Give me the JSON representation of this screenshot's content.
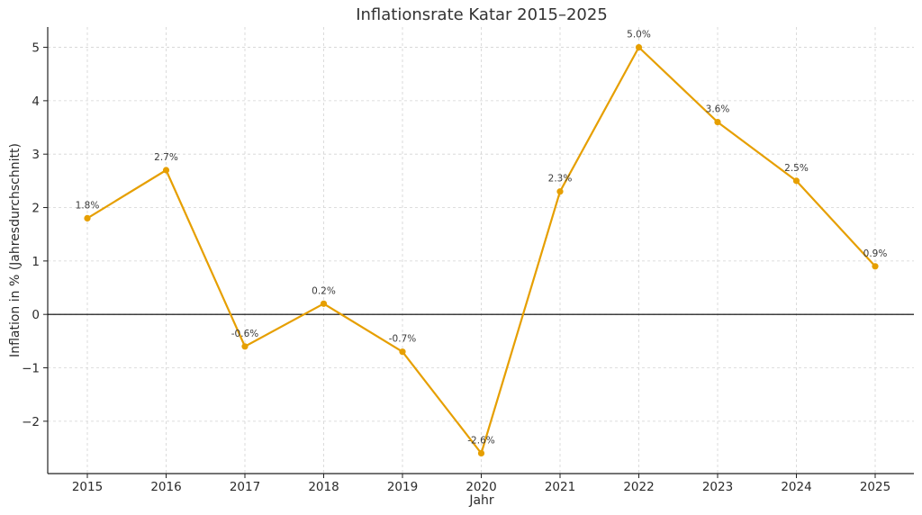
{
  "chart_data": {
    "type": "line",
    "title": "Inflationsrate Katar 2015–2025",
    "xlabel": "Jahr",
    "ylabel": "Inflation in % (Jahresdurchschnitt)",
    "x": [
      "2015",
      "2016",
      "2017",
      "2018",
      "2019",
      "2020",
      "2021",
      "2022",
      "2023",
      "2024",
      "2025"
    ],
    "series": [
      {
        "values": [
          1.8,
          2.7,
          -0.6,
          0.2,
          -0.7,
          -2.6,
          2.3,
          5.0,
          3.6,
          2.5,
          0.9
        ],
        "data_labels": [
          "1.8%",
          "2.7%",
          "-0.6%",
          "0.2%",
          "-0.7%",
          "-2.6%",
          "2.3%",
          "5.0%",
          "3.6%",
          "2.5%",
          "0.9%"
        ],
        "color": "#E69F00"
      }
    ],
    "yticks": [
      -2,
      -1,
      0,
      1,
      2,
      3,
      4,
      5
    ],
    "ytick_labels": [
      "−2",
      "−1",
      "0",
      "1",
      "2",
      "3",
      "4",
      "5"
    ],
    "ylim": [
      -2.98,
      5.38
    ],
    "grid": true,
    "zero_line": true
  }
}
